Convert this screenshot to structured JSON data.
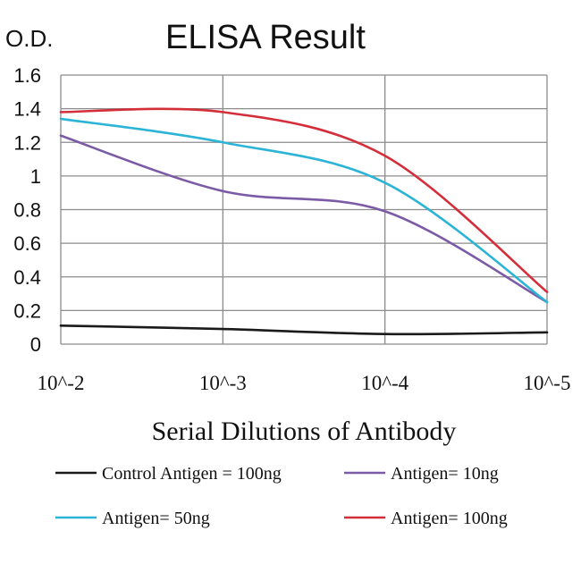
{
  "chart_data": {
    "type": "line",
    "title": "ELISA Result",
    "ylabel": "O.D.",
    "xlabel": "Serial Dilutions of Antibody",
    "x": [
      "10^-2",
      "10^-3",
      "10^-4",
      "10^-5"
    ],
    "ylim": [
      0,
      1.6
    ],
    "yticks": [
      "0",
      "0.2",
      "0.4",
      "0.6",
      "0.8",
      "1",
      "1.2",
      "1.4",
      "1.6"
    ],
    "grid": true,
    "legend_position": "bottom",
    "series": [
      {
        "name": "Control Antigen = 100ng",
        "color": "#1a1a1a",
        "values": [
          0.11,
          0.09,
          0.06,
          0.07
        ]
      },
      {
        "name": "Antigen= 10ng",
        "color": "#7b5aa6",
        "values": [
          1.24,
          0.91,
          0.79,
          0.25
        ]
      },
      {
        "name": "Antigen= 50ng",
        "color": "#2bb4d6",
        "values": [
          1.34,
          1.2,
          0.96,
          0.25
        ]
      },
      {
        "name": "Antigen= 100ng",
        "color": "#d42e3a",
        "values": [
          1.38,
          1.38,
          1.12,
          0.31
        ]
      }
    ]
  }
}
